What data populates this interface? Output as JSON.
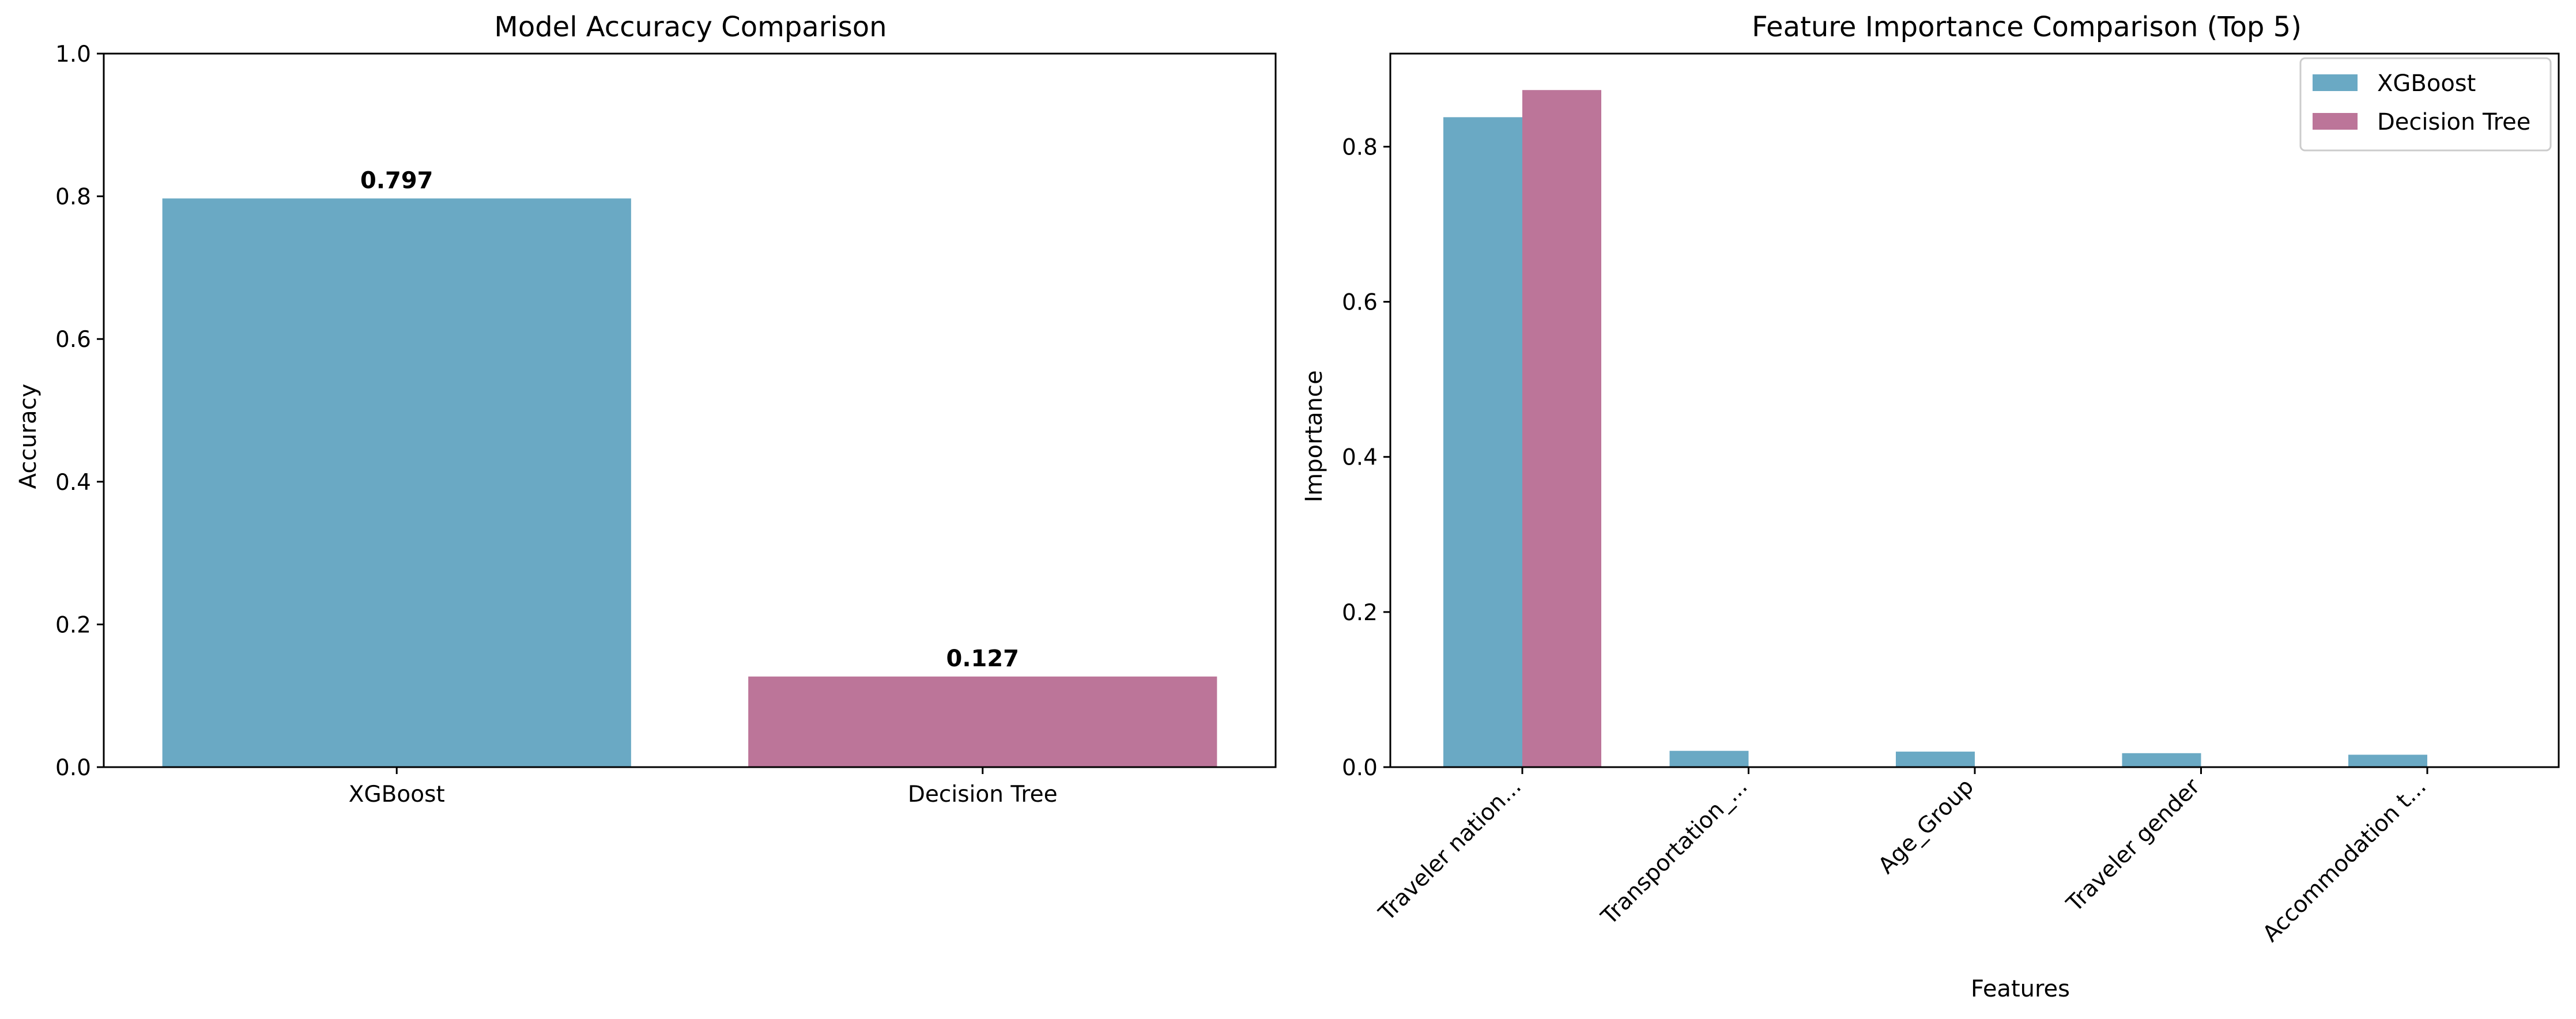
{
  "chart_data": [
    {
      "type": "bar",
      "title": "Model Accuracy Comparison",
      "xlabel": "",
      "ylabel": "Accuracy",
      "categories": [
        "XGBoost",
        "Decision Tree"
      ],
      "values": [
        0.797,
        0.127
      ],
      "data_labels": [
        "0.797",
        "0.127"
      ],
      "bar_colors": [
        "#6aa9c4",
        "#bc7599"
      ],
      "ylim": [
        0,
        1.0
      ],
      "yticks": [
        0.0,
        0.2,
        0.4,
        0.6,
        0.8,
        1.0
      ],
      "ytick_labels": [
        "0.0",
        "0.2",
        "0.4",
        "0.6",
        "0.8",
        "1.0"
      ],
      "grid": false,
      "legend": null
    },
    {
      "type": "bar",
      "title": "Feature Importance Comparison (Top 5)",
      "xlabel": "Features",
      "ylabel": "Importance",
      "categories": [
        "Traveler nation...",
        "Transportation_...",
        "Age_Group",
        "Traveler gender",
        "Accommodation t..."
      ],
      "series": [
        {
          "name": "XGBoost",
          "color": "#6aa9c4",
          "values": [
            0.838,
            0.021,
            0.02,
            0.018,
            0.016
          ]
        },
        {
          "name": "Decision Tree",
          "color": "#bc7599",
          "values": [
            0.873,
            0.0,
            0.0,
            0.0,
            0.0
          ]
        }
      ],
      "ylim": [
        0,
        0.92
      ],
      "yticks": [
        0.0,
        0.2,
        0.4,
        0.6,
        0.8
      ],
      "ytick_labels": [
        "0.0",
        "0.2",
        "0.4",
        "0.6",
        "0.8"
      ],
      "xtick_rotation": 45,
      "grid": false,
      "legend": "top-right"
    }
  ]
}
